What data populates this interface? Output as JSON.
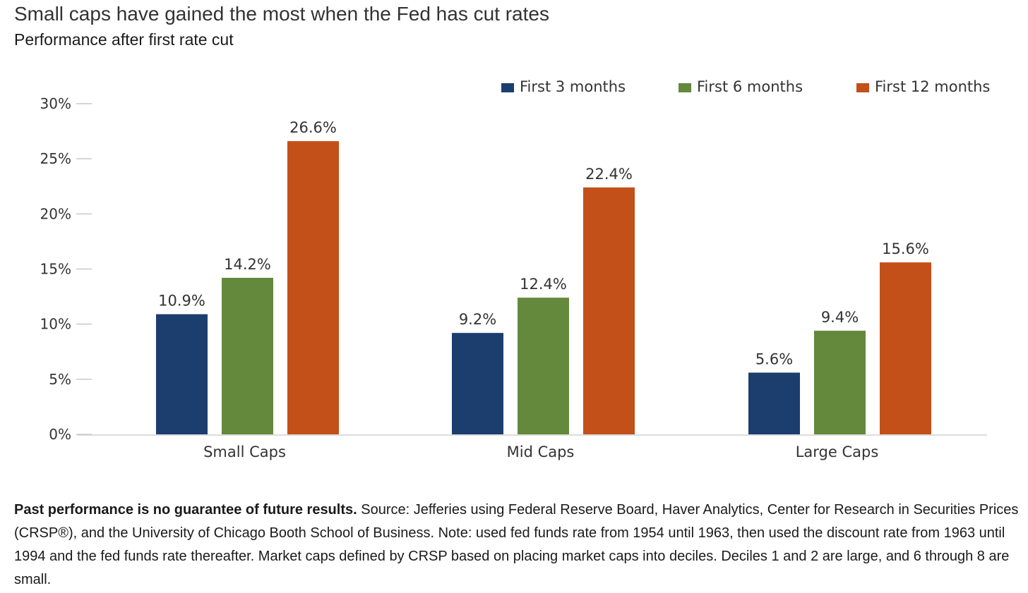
{
  "header": {
    "title": "Small caps have gained the most when the Fed has cut rates",
    "subtitle": "Performance after first rate cut"
  },
  "chart_data": {
    "type": "bar",
    "title": "",
    "xlabel": "",
    "ylabel": "",
    "categories": [
      "Small Caps",
      "Mid Caps",
      "Large Caps"
    ],
    "series": [
      {
        "name": "First 3 months",
        "values": [
          10.9,
          9.2,
          5.6
        ],
        "color": "#1b3e6f"
      },
      {
        "name": "First 6 months",
        "values": [
          14.2,
          12.4,
          9.4
        ],
        "color": "#64893d"
      },
      {
        "name": "First 12 months",
        "values": [
          26.6,
          22.4,
          15.6
        ],
        "color": "#c35019"
      }
    ],
    "data_labels": [
      [
        "10.9%",
        "9.2%",
        "5.6%"
      ],
      [
        "14.2%",
        "12.4%",
        "9.4%"
      ],
      [
        "26.6%",
        "22.4%",
        "15.6%"
      ]
    ],
    "ylim": [
      0,
      30
    ],
    "yticks": [
      0,
      5,
      10,
      15,
      20,
      25,
      30
    ],
    "ytick_labels": [
      "0%",
      "5%",
      "10%",
      "15%",
      "20%",
      "25%",
      "30%"
    ],
    "grid": false,
    "legend_position": "top-right"
  },
  "footnote": {
    "bold": "Past performance is no guarantee of future results.",
    "text": " Source: Jefferies using Federal Reserve Board, Haver Analytics, Center for Research in Securities Prices (CRSP®), and the University of Chicago Booth School of Business. Note: used fed funds rate from 1954 until 1963, then used the discount rate from 1963 until 1994 and the fed funds rate thereafter. Market caps defined by CRSP based on placing market caps into deciles. Deciles 1 and 2 are large, and 6 through 8 are small."
  }
}
